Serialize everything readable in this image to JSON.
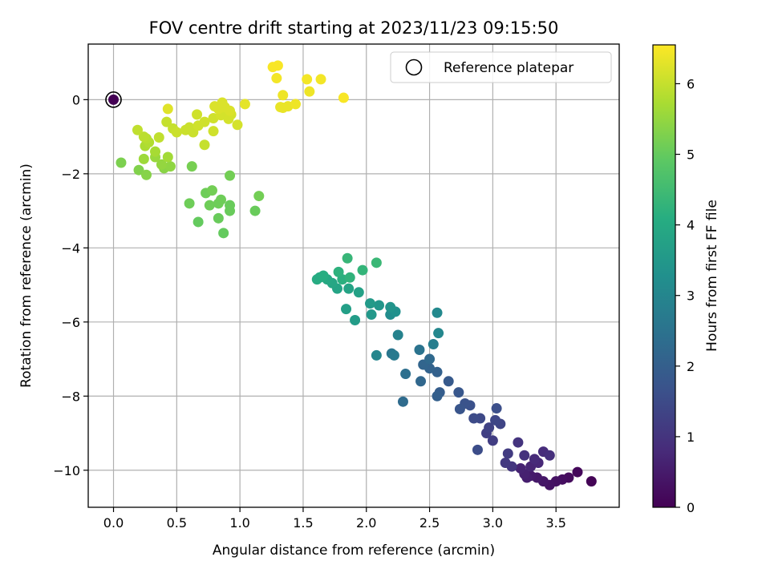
{
  "chart_data": {
    "type": "scatter",
    "title": "FOV centre drift starting at 2023/11/23 09:15:50",
    "xlabel": "Angular distance from reference (arcmin)",
    "ylabel": "Rotation from reference (arcmin)",
    "xlim": [
      -0.2,
      4.0
    ],
    "ylim": [
      -11.0,
      1.5
    ],
    "xticks": [
      0.0,
      0.5,
      1.0,
      1.5,
      2.0,
      2.5,
      3.0,
      3.5
    ],
    "yticks": [
      0,
      -2,
      -4,
      -6,
      -8,
      -10
    ],
    "grid": true,
    "colormap": "viridis",
    "colorbar": {
      "label": "Hours from first FF file",
      "min": 0,
      "max": 6.55,
      "ticks": [
        0,
        1,
        2,
        3,
        4,
        5,
        6
      ]
    },
    "legend": {
      "position": "upper-right",
      "entries": [
        "Reference platepar"
      ]
    },
    "reference": {
      "x": 0.0,
      "y": 0.0,
      "c": 0.0
    },
    "points": [
      {
        "x": 3.78,
        "y": -10.3,
        "c": 0.05
      },
      {
        "x": 3.67,
        "y": -10.05,
        "c": 0.12
      },
      {
        "x": 3.6,
        "y": -10.2,
        "c": 0.2
      },
      {
        "x": 3.55,
        "y": -10.25,
        "c": 0.25
      },
      {
        "x": 3.5,
        "y": -10.3,
        "c": 0.3
      },
      {
        "x": 3.45,
        "y": -10.4,
        "c": 0.35
      },
      {
        "x": 3.4,
        "y": -10.3,
        "c": 0.4
      },
      {
        "x": 3.35,
        "y": -10.2,
        "c": 0.45
      },
      {
        "x": 3.3,
        "y": -10.15,
        "c": 0.5
      },
      {
        "x": 3.27,
        "y": -10.2,
        "c": 0.55
      },
      {
        "x": 3.25,
        "y": -10.1,
        "c": 0.6
      },
      {
        "x": 3.22,
        "y": -9.95,
        "c": 0.65
      },
      {
        "x": 3.3,
        "y": -9.9,
        "c": 0.7
      },
      {
        "x": 3.36,
        "y": -9.8,
        "c": 0.75
      },
      {
        "x": 3.33,
        "y": -9.7,
        "c": 0.8
      },
      {
        "x": 3.4,
        "y": -9.5,
        "c": 0.85
      },
      {
        "x": 3.45,
        "y": -9.6,
        "c": 0.9
      },
      {
        "x": 3.25,
        "y": -9.6,
        "c": 0.95
      },
      {
        "x": 3.2,
        "y": -9.25,
        "c": 1.0
      },
      {
        "x": 3.15,
        "y": -9.9,
        "c": 1.05
      },
      {
        "x": 3.1,
        "y": -9.8,
        "c": 1.1
      },
      {
        "x": 3.12,
        "y": -9.55,
        "c": 1.15
      },
      {
        "x": 3.0,
        "y": -9.2,
        "c": 1.2
      },
      {
        "x": 2.95,
        "y": -9.0,
        "c": 1.25
      },
      {
        "x": 2.97,
        "y": -8.85,
        "c": 1.3
      },
      {
        "x": 3.06,
        "y": -8.75,
        "c": 1.35
      },
      {
        "x": 3.02,
        "y": -8.65,
        "c": 1.4
      },
      {
        "x": 2.9,
        "y": -8.6,
        "c": 1.45
      },
      {
        "x": 2.85,
        "y": -8.6,
        "c": 1.5
      },
      {
        "x": 2.88,
        "y": -9.45,
        "c": 1.55
      },
      {
        "x": 3.03,
        "y": -8.33,
        "c": 1.6
      },
      {
        "x": 2.82,
        "y": -8.25,
        "c": 1.65
      },
      {
        "x": 2.78,
        "y": -8.2,
        "c": 1.7
      },
      {
        "x": 2.74,
        "y": -8.35,
        "c": 1.75
      },
      {
        "x": 2.73,
        "y": -7.9,
        "c": 1.8
      },
      {
        "x": 2.65,
        "y": -7.6,
        "c": 1.88
      },
      {
        "x": 2.58,
        "y": -7.9,
        "c": 1.95
      },
      {
        "x": 2.56,
        "y": -8.0,
        "c": 2.0
      },
      {
        "x": 2.56,
        "y": -7.35,
        "c": 2.05
      },
      {
        "x": 2.5,
        "y": -7.25,
        "c": 2.1
      },
      {
        "x": 2.45,
        "y": -7.15,
        "c": 2.15
      },
      {
        "x": 2.43,
        "y": -7.6,
        "c": 2.2
      },
      {
        "x": 2.5,
        "y": -7.0,
        "c": 2.25
      },
      {
        "x": 2.29,
        "y": -8.15,
        "c": 2.3
      },
      {
        "x": 2.31,
        "y": -7.4,
        "c": 2.4
      },
      {
        "x": 2.42,
        "y": -6.75,
        "c": 2.5
      },
      {
        "x": 2.2,
        "y": -6.85,
        "c": 2.6
      },
      {
        "x": 2.22,
        "y": -6.9,
        "c": 2.7
      },
      {
        "x": 2.53,
        "y": -6.6,
        "c": 2.8
      },
      {
        "x": 2.25,
        "y": -6.35,
        "c": 2.9
      },
      {
        "x": 2.08,
        "y": -6.9,
        "c": 3.0
      },
      {
        "x": 2.57,
        "y": -6.3,
        "c": 3.05
      },
      {
        "x": 2.56,
        "y": -5.75,
        "c": 3.1
      },
      {
        "x": 2.19,
        "y": -5.8,
        "c": 3.2
      },
      {
        "x": 2.23,
        "y": -5.72,
        "c": 3.3
      },
      {
        "x": 2.19,
        "y": -5.6,
        "c": 3.4
      },
      {
        "x": 2.1,
        "y": -5.55,
        "c": 3.45
      },
      {
        "x": 2.04,
        "y": -5.8,
        "c": 3.5
      },
      {
        "x": 2.03,
        "y": -5.5,
        "c": 3.55
      },
      {
        "x": 1.91,
        "y": -5.95,
        "c": 3.6
      },
      {
        "x": 1.84,
        "y": -5.65,
        "c": 3.7
      },
      {
        "x": 1.94,
        "y": -5.2,
        "c": 3.75
      },
      {
        "x": 1.86,
        "y": -5.1,
        "c": 3.8
      },
      {
        "x": 1.77,
        "y": -5.1,
        "c": 3.85
      },
      {
        "x": 1.73,
        "y": -4.95,
        "c": 3.9
      },
      {
        "x": 1.69,
        "y": -4.85,
        "c": 3.95
      },
      {
        "x": 1.63,
        "y": -4.8,
        "c": 4.0
      },
      {
        "x": 1.61,
        "y": -4.85,
        "c": 4.05
      },
      {
        "x": 1.66,
        "y": -4.75,
        "c": 4.1
      },
      {
        "x": 1.81,
        "y": -4.85,
        "c": 4.15
      },
      {
        "x": 1.78,
        "y": -4.65,
        "c": 4.2
      },
      {
        "x": 1.87,
        "y": -4.8,
        "c": 4.25
      },
      {
        "x": 1.97,
        "y": -4.6,
        "c": 4.3
      },
      {
        "x": 1.85,
        "y": -4.28,
        "c": 4.35
      },
      {
        "x": 2.08,
        "y": -4.4,
        "c": 4.4
      },
      {
        "x": 0.87,
        "y": -3.6,
        "c": 5.0
      },
      {
        "x": 0.67,
        "y": -3.3,
        "c": 5.0
      },
      {
        "x": 0.83,
        "y": -3.2,
        "c": 5.05
      },
      {
        "x": 0.92,
        "y": -3.0,
        "c": 5.05
      },
      {
        "x": 1.12,
        "y": -3.0,
        "c": 5.05
      },
      {
        "x": 0.92,
        "y": -2.85,
        "c": 5.05
      },
      {
        "x": 0.76,
        "y": -2.85,
        "c": 5.1
      },
      {
        "x": 0.83,
        "y": -2.8,
        "c": 5.1
      },
      {
        "x": 0.6,
        "y": -2.8,
        "c": 5.1
      },
      {
        "x": 0.85,
        "y": -2.7,
        "c": 5.1
      },
      {
        "x": 0.73,
        "y": -2.52,
        "c": 5.1
      },
      {
        "x": 0.78,
        "y": -2.45,
        "c": 5.15
      },
      {
        "x": 1.15,
        "y": -2.6,
        "c": 5.15
      },
      {
        "x": 0.92,
        "y": -2.05,
        "c": 5.15
      },
      {
        "x": 0.62,
        "y": -1.8,
        "c": 5.2
      },
      {
        "x": 0.06,
        "y": -1.7,
        "c": 5.25
      },
      {
        "x": 0.2,
        "y": -1.9,
        "c": 5.3
      },
      {
        "x": 0.26,
        "y": -2.03,
        "c": 5.35
      },
      {
        "x": 0.4,
        "y": -1.85,
        "c": 5.4
      },
      {
        "x": 0.45,
        "y": -1.8,
        "c": 5.45
      },
      {
        "x": 0.38,
        "y": -1.75,
        "c": 5.5
      },
      {
        "x": 0.33,
        "y": -1.55,
        "c": 5.55
      },
      {
        "x": 0.24,
        "y": -1.6,
        "c": 5.6
      },
      {
        "x": 0.43,
        "y": -1.55,
        "c": 5.65
      },
      {
        "x": 0.33,
        "y": -1.4,
        "c": 5.7
      },
      {
        "x": 0.25,
        "y": -1.25,
        "c": 5.75
      },
      {
        "x": 0.28,
        "y": -1.15,
        "c": 5.8
      },
      {
        "x": 0.26,
        "y": -1.05,
        "c": 5.85
      },
      {
        "x": 0.24,
        "y": -1.0,
        "c": 5.9
      },
      {
        "x": 0.19,
        "y": -0.82,
        "c": 5.95
      },
      {
        "x": 0.36,
        "y": -1.02,
        "c": 5.95
      },
      {
        "x": 0.72,
        "y": -1.22,
        "c": 6.0
      },
      {
        "x": 0.42,
        "y": -0.6,
        "c": 6.0
      },
      {
        "x": 0.47,
        "y": -0.78,
        "c": 6.0
      },
      {
        "x": 0.5,
        "y": -0.88,
        "c": 6.05
      },
      {
        "x": 0.57,
        "y": -0.82,
        "c": 6.05
      },
      {
        "x": 0.63,
        "y": -0.88,
        "c": 6.05
      },
      {
        "x": 0.6,
        "y": -0.75,
        "c": 6.05
      },
      {
        "x": 0.67,
        "y": -0.7,
        "c": 6.1
      },
      {
        "x": 0.72,
        "y": -0.6,
        "c": 6.1
      },
      {
        "x": 0.79,
        "y": -0.5,
        "c": 6.1
      },
      {
        "x": 0.66,
        "y": -0.4,
        "c": 6.1
      },
      {
        "x": 0.79,
        "y": -0.85,
        "c": 6.1
      },
      {
        "x": 0.85,
        "y": -0.42,
        "c": 6.15
      },
      {
        "x": 0.93,
        "y": -0.4,
        "c": 6.15
      },
      {
        "x": 0.98,
        "y": -0.68,
        "c": 6.15
      },
      {
        "x": 0.91,
        "y": -0.52,
        "c": 6.15
      },
      {
        "x": 0.83,
        "y": -0.25,
        "c": 6.2
      },
      {
        "x": 0.88,
        "y": -0.2,
        "c": 6.2
      },
      {
        "x": 0.92,
        "y": -0.3,
        "c": 6.2
      },
      {
        "x": 0.8,
        "y": -0.18,
        "c": 6.2
      },
      {
        "x": 0.86,
        "y": -0.08,
        "c": 6.2
      },
      {
        "x": 0.43,
        "y": -0.25,
        "c": 6.25
      },
      {
        "x": 1.04,
        "y": -0.12,
        "c": 6.3
      },
      {
        "x": 1.34,
        "y": -0.22,
        "c": 6.35
      },
      {
        "x": 1.32,
        "y": -0.2,
        "c": 6.35
      },
      {
        "x": 1.38,
        "y": -0.18,
        "c": 6.35
      },
      {
        "x": 1.44,
        "y": -0.12,
        "c": 6.4
      },
      {
        "x": 1.34,
        "y": 0.12,
        "c": 6.4
      },
      {
        "x": 1.55,
        "y": 0.22,
        "c": 6.4
      },
      {
        "x": 1.29,
        "y": 0.58,
        "c": 6.45
      },
      {
        "x": 1.53,
        "y": 0.55,
        "c": 6.45
      },
      {
        "x": 1.64,
        "y": 0.55,
        "c": 6.45
      },
      {
        "x": 1.26,
        "y": 0.88,
        "c": 6.5
      },
      {
        "x": 1.3,
        "y": 0.92,
        "c": 6.5
      },
      {
        "x": 1.82,
        "y": 0.05,
        "c": 6.5
      }
    ]
  }
}
